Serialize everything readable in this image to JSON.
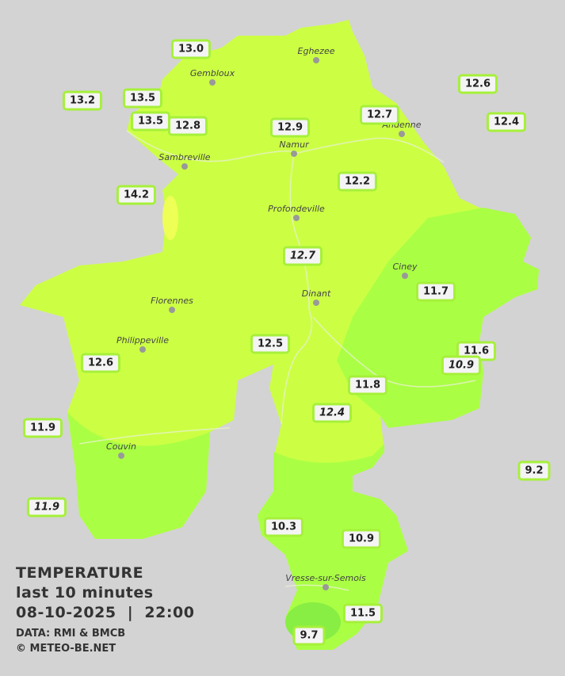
{
  "title": "TEMPERATURE",
  "subtitle": "last 10 minutes",
  "datetime": "08-10-2025  |  22:00",
  "credits": [
    "DATA: RMI & BMCB",
    "© METEO-BE.NET"
  ],
  "cities": [
    "Eghezee",
    "Gembloux",
    "Andenne",
    "Namur",
    "Sambreville",
    "Profondeville",
    "Ciney",
    "Dinant",
    "Florennes",
    "Philippeville",
    "Couvin",
    "Vresse-sur-Semois"
  ],
  "stations": [
    "13.0",
    "13.2",
    "13.5",
    "13.5",
    "12.8",
    "12.9",
    "12.7",
    "12.6",
    "12.4",
    "14.2",
    "12.2",
    "12.7",
    "11.7",
    "12.5",
    "12.6",
    "11.6",
    "10.9",
    "11.8",
    "12.4",
    "11.9",
    "9.2",
    "11.9",
    "10.3",
    "10.9",
    "11.5",
    "9.7"
  ]
}
